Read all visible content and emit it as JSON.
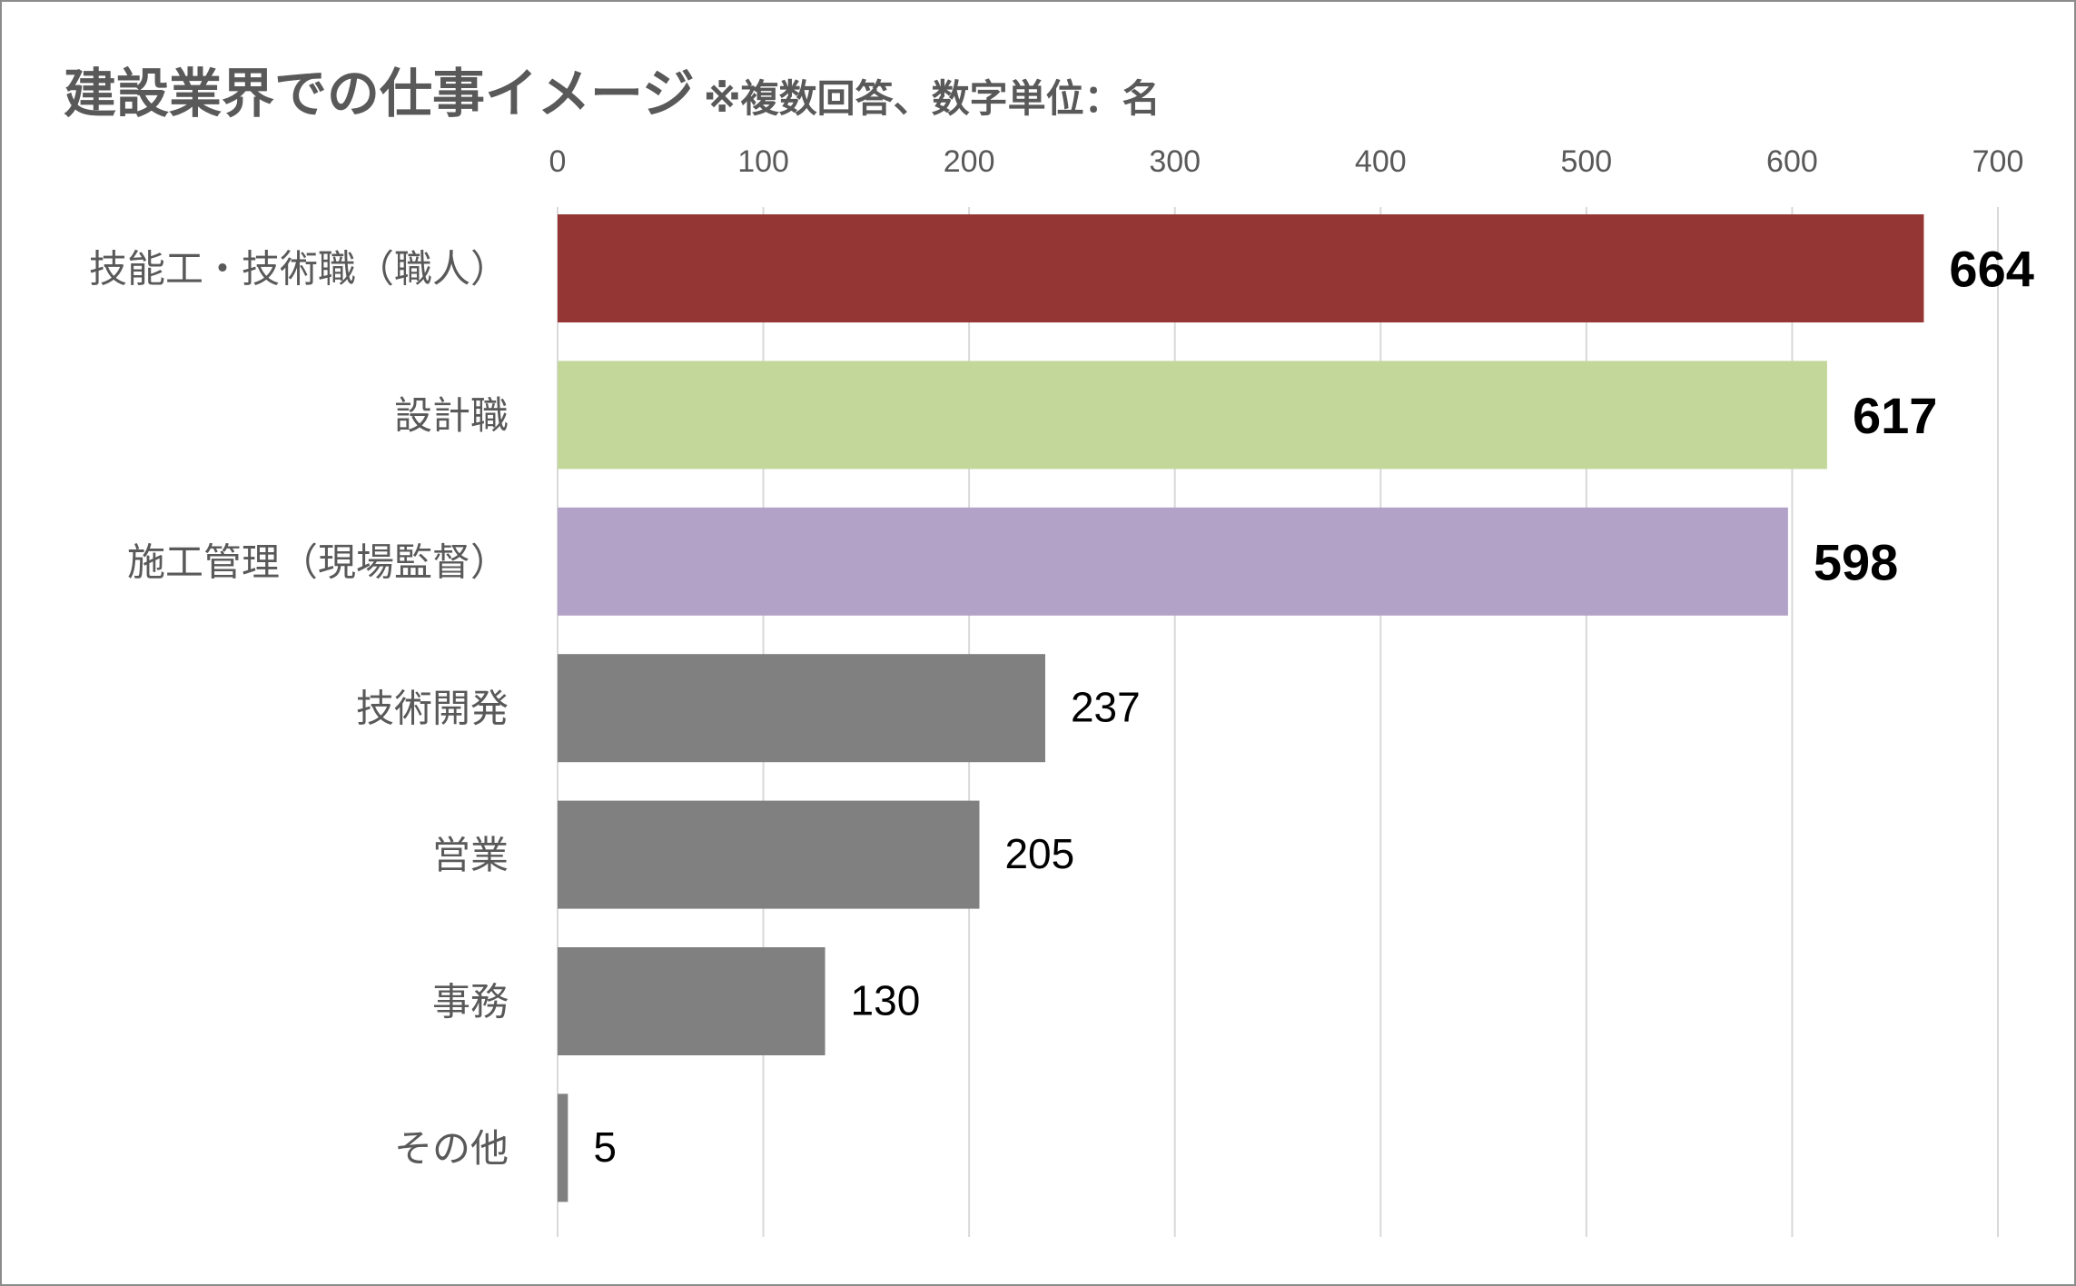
{
  "chart_data": {
    "type": "bar",
    "orientation": "horizontal",
    "title": "建設業界での仕事イメージ",
    "subtitle": "※複数回答、数字単位：名",
    "categories": [
      "技能工・技術職（職人）",
      "設計職",
      "施工管理（現場監督）",
      "技術開発",
      "営業",
      "事務",
      "その他"
    ],
    "values": [
      664,
      617,
      598,
      237,
      205,
      130,
      5
    ],
    "colors": [
      "#943634",
      "#c4d79b",
      "#b2a2c7",
      "#808080",
      "#808080",
      "#808080",
      "#808080"
    ],
    "highlighted": [
      true,
      true,
      true,
      false,
      false,
      false,
      false
    ],
    "xlim": [
      0,
      700
    ],
    "xticks": [
      "0",
      "100",
      "200",
      "300",
      "400",
      "500",
      "600",
      "700"
    ],
    "xaxis_position": "top",
    "grid": true,
    "gridline_color": "#d9d9d9"
  }
}
